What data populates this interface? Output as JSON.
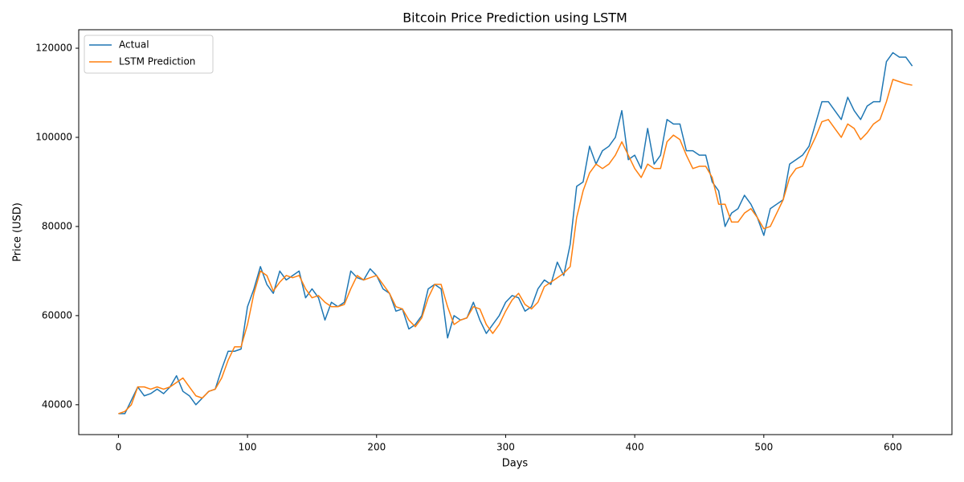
{
  "chart_data": {
    "type": "line",
    "title": "Bitcoin Price Prediction using LSTM",
    "x_label": "Days",
    "y_label": "Price (USD)",
    "x": [
      0,
      5,
      10,
      15,
      20,
      25,
      30,
      35,
      40,
      45,
      50,
      55,
      60,
      65,
      70,
      75,
      80,
      85,
      90,
      95,
      100,
      105,
      110,
      115,
      120,
      125,
      130,
      135,
      140,
      145,
      150,
      155,
      160,
      165,
      170,
      175,
      180,
      185,
      190,
      195,
      200,
      205,
      210,
      215,
      220,
      225,
      230,
      235,
      240,
      245,
      250,
      255,
      260,
      265,
      270,
      275,
      280,
      285,
      290,
      295,
      300,
      305,
      310,
      315,
      320,
      325,
      330,
      335,
      340,
      345,
      350,
      355,
      360,
      365,
      370,
      375,
      380,
      385,
      390,
      395,
      400,
      405,
      410,
      415,
      420,
      425,
      430,
      435,
      440,
      445,
      450,
      455,
      460,
      465,
      470,
      475,
      480,
      485,
      490,
      495,
      500,
      505,
      510,
      515,
      520,
      525,
      530,
      535,
      540,
      545,
      550,
      555,
      560,
      565,
      570,
      575,
      580,
      585,
      590,
      595,
      600,
      605,
      610,
      615
    ],
    "series": [
      {
        "name": "Actual",
        "color": "#1f77b4",
        "values": [
          38000,
          38000,
          41000,
          44000,
          42000,
          42500,
          43500,
          42500,
          44000,
          46500,
          43000,
          42000,
          40000,
          41500,
          43000,
          43500,
          48000,
          52000,
          52000,
          52500,
          62000,
          66000,
          71000,
          67000,
          65000,
          70000,
          68000,
          69000,
          70000,
          64000,
          66000,
          64000,
          59000,
          63000,
          62000,
          63000,
          70000,
          68500,
          68000,
          70500,
          69000,
          66000,
          65000,
          61000,
          61500,
          57000,
          58000,
          60000,
          66000,
          67000,
          66000,
          55000,
          60000,
          59000,
          59500,
          63000,
          59000,
          56000,
          58000,
          60000,
          63000,
          64500,
          64000,
          61000,
          62000,
          66000,
          68000,
          67000,
          72000,
          69000,
          76000,
          89000,
          90000,
          98000,
          94000,
          97000,
          98000,
          100000,
          106000,
          95000,
          96000,
          93000,
          102000,
          94000,
          96000,
          104000,
          103000,
          103000,
          97000,
          97000,
          96000,
          96000,
          90000,
          88000,
          80000,
          83000,
          84000,
          87000,
          85000,
          82000,
          78000,
          84000,
          85000,
          86000,
          94000,
          95000,
          96000,
          98000,
          103000,
          108000,
          108000,
          106000,
          104000,
          109000,
          106000,
          104000,
          107000,
          108000,
          108000,
          117000,
          119000,
          118000,
          118000,
          116000
        ]
      },
      {
        "name": "LSTM Prediction",
        "color": "#ff7f0e",
        "values": [
          38000,
          38500,
          40000,
          44000,
          44000,
          43500,
          44000,
          43500,
          44000,
          45000,
          46000,
          44000,
          42000,
          41500,
          43000,
          43500,
          46000,
          50000,
          53000,
          53000,
          58000,
          65000,
          70000,
          69000,
          65500,
          67500,
          69000,
          68500,
          69000,
          66000,
          64000,
          64500,
          63000,
          62000,
          62000,
          62500,
          66000,
          69000,
          68000,
          68500,
          69000,
          67000,
          65000,
          62000,
          61500,
          59000,
          57500,
          59500,
          64000,
          67000,
          67000,
          62000,
          58000,
          59000,
          59500,
          62000,
          61500,
          58000,
          56000,
          58000,
          61000,
          63500,
          65000,
          62500,
          61500,
          63000,
          66500,
          67500,
          68500,
          69500,
          71000,
          82000,
          88000,
          92000,
          94000,
          93000,
          94000,
          96000,
          99000,
          96000,
          93000,
          91000,
          94000,
          93000,
          93000,
          99000,
          100500,
          99500,
          96000,
          93000,
          93500,
          93500,
          91000,
          85000,
          85000,
          81000,
          81000,
          83000,
          84000,
          82000,
          79500,
          80000,
          83000,
          86000,
          91000,
          93000,
          93500,
          97000,
          100000,
          103500,
          104000,
          102000,
          100000,
          103000,
          102000,
          99500,
          101000,
          103000,
          104000,
          108000,
          113000,
          112500,
          112000,
          111700
        ]
      }
    ],
    "xlim": [
      -30.75,
      645.75
    ],
    "ylim": [
      33300,
      124150
    ],
    "xticks": [
      0,
      100,
      200,
      300,
      400,
      500,
      600
    ],
    "yticks": [
      40000,
      60000,
      80000,
      100000,
      120000
    ],
    "legend": "upper left"
  }
}
